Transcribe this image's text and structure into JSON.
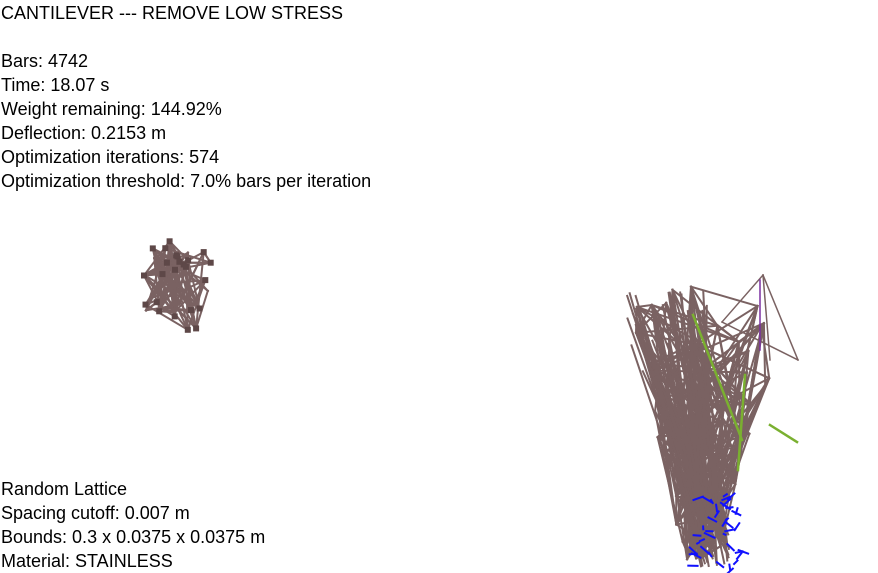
{
  "header": {
    "title": "CANTILEVER --- REMOVE LOW STRESS"
  },
  "stats": {
    "bars": "Bars: 4742",
    "time": "Time: 18.07 s",
    "weight": "Weight remaining: 144.92%",
    "deflection": "Deflection: 0.2153 m",
    "iterations": "Optimization iterations: 574",
    "threshold": "Optimization threshold: 7.0% bars per iteration"
  },
  "lattice": {
    "type": "Random Lattice",
    "spacing": "Spacing cutoff: 0.007 m",
    "bounds": "Bounds: 0.3 x 0.0375 x 0.0375 m",
    "material": "Material: STAINLESS"
  },
  "colors": {
    "background": "#ffffff",
    "bar": "#7a6262",
    "bar_dark": "#5e4848",
    "bar_stressed": "#7ab030",
    "support": "#1010ff",
    "highlight": "#7a2fa0"
  }
}
